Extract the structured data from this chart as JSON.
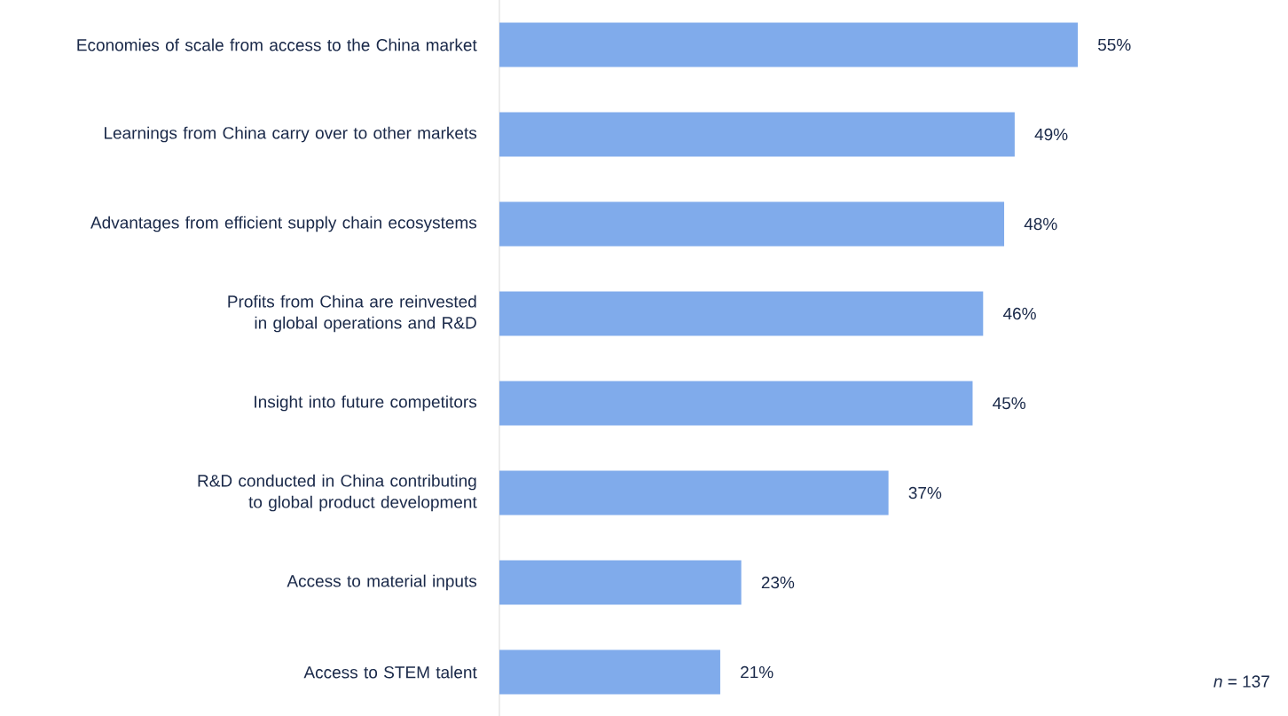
{
  "chart_data": {
    "type": "bar",
    "orientation": "horizontal",
    "color": "#80abeb",
    "categories": [
      "Economies of scale from access to the China market",
      "Learnings from China carry over to other markets",
      "Advantages from efficient supply chain ecosystems",
      "Profits from China are reinvested in global operations and R&D",
      "Insight into future competitors",
      "R&D conducted in China contributing to global product development",
      "Access to material inputs",
      "Access to STEM talent"
    ],
    "values": [
      55,
      49,
      48,
      46,
      45,
      37,
      23,
      21
    ],
    "value_labels": [
      "55%",
      "49%",
      "48%",
      "46%",
      "45%",
      "37%",
      "23%",
      "21%"
    ],
    "annotations": [
      "*n* = 137"
    ]
  }
}
